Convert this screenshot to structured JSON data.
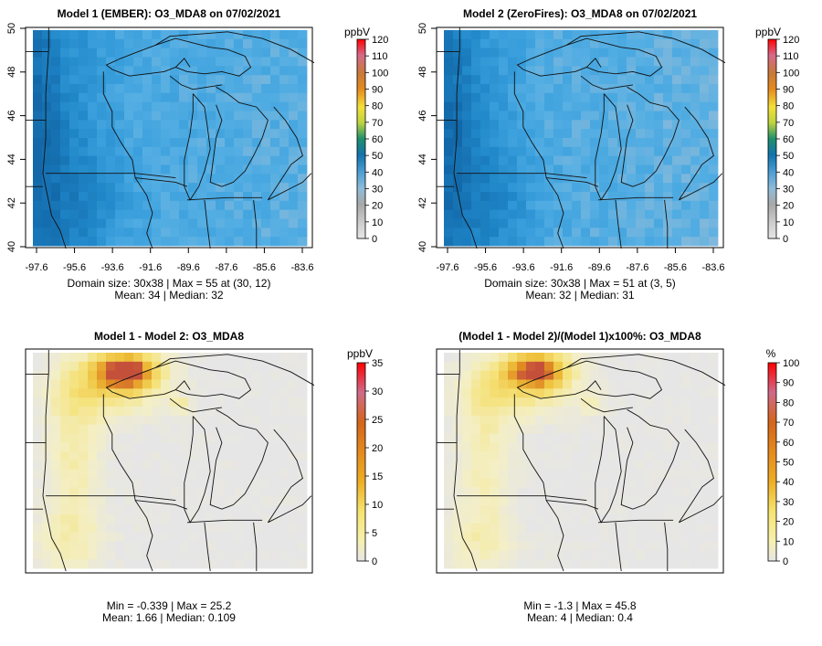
{
  "figure": "O3_MDA8 model comparison maps",
  "colors": {
    "abs_scale": [
      "#e6e6e6",
      "#cccccc",
      "#a8a8a8",
      "#8fbcd8",
      "#62a9dc",
      "#2f8fcf",
      "#1273ad",
      "#1e8f6e",
      "#38a84a",
      "#bcd440",
      "#f3df3a",
      "#f0b22e",
      "#e58a1e",
      "#d4651b",
      "#c7474a",
      "#d32a55",
      "#ff0000"
    ],
    "diff_scale": [
      "#e6e6e6",
      "#f6f0b0",
      "#f6e46e",
      "#f2cf3d",
      "#eeae24",
      "#e58a1e",
      "#d86a1c",
      "#c85a3a",
      "#d02a55",
      "#ff0000"
    ]
  },
  "chart_data": [
    {
      "type": "heatmap",
      "title": "Model 1 (EMBER): O3_MDA8 on 07/02/2021",
      "unit": "ppbV",
      "x_ticks": [
        "-97.6",
        "-95.6",
        "-93.6",
        "-91.6",
        "-89.6",
        "-87.6",
        "-85.6",
        "-83.6"
      ],
      "y_ticks": [
        "40",
        "42",
        "44",
        "46",
        "48",
        "50"
      ],
      "xlim": [
        -98.0,
        -83.4
      ],
      "ylim": [
        40.0,
        50.0
      ],
      "colorbar_ticks": [
        "0",
        "10",
        "20",
        "30",
        "40",
        "50",
        "60",
        "70",
        "80",
        "90",
        "100",
        "110",
        "120"
      ],
      "colorbar_range": [
        0,
        120
      ],
      "stats_line1": "Domain size: 30x38 | Max = 55 at (30, 12)",
      "stats_line2": "Mean: 34 |  Median: 32",
      "grid_cols": 30,
      "grid_rows": 38,
      "max": 55,
      "mean": 34,
      "median": 32
    },
    {
      "type": "heatmap",
      "title": "Model 2 (ZeroFires): O3_MDA8 on 07/02/2021",
      "unit": "ppbV",
      "x_ticks": [
        "-97.6",
        "-95.6",
        "-93.6",
        "-91.6",
        "-89.6",
        "-87.6",
        "-85.6",
        "-83.6"
      ],
      "y_ticks": [
        "40",
        "42",
        "44",
        "46",
        "48",
        "50"
      ],
      "xlim": [
        -98.0,
        -83.4
      ],
      "ylim": [
        40.0,
        50.0
      ],
      "colorbar_ticks": [
        "0",
        "10",
        "20",
        "30",
        "40",
        "50",
        "60",
        "70",
        "80",
        "90",
        "100",
        "110",
        "120"
      ],
      "colorbar_range": [
        0,
        120
      ],
      "stats_line1": "Domain size: 30x38 | Max = 51 at (3, 5)",
      "stats_line2": "Mean: 32 |  Median: 31",
      "grid_cols": 30,
      "grid_rows": 38,
      "max": 51,
      "mean": 32,
      "median": 31
    },
    {
      "type": "heatmap",
      "title": "Model 1 - Model 2: O3_MDA8",
      "unit": "ppbV",
      "colorbar_ticks": [
        "0",
        "5",
        "10",
        "15",
        "20",
        "25",
        "30",
        "35"
      ],
      "colorbar_range": [
        0,
        35
      ],
      "stats_line1": "Min = -0.339 | Max = 25.2",
      "stats_line2": "Mean: 1.66 |  Median: 0.109",
      "min": -0.339,
      "max": 25.2,
      "mean": 1.66,
      "median": 0.109
    },
    {
      "type": "heatmap",
      "title": "(Model 1 - Model 2)/(Model 1)x100%: O3_MDA8",
      "unit": "%",
      "colorbar_ticks": [
        "0",
        "10",
        "20",
        "30",
        "40",
        "50",
        "60",
        "70",
        "80",
        "90",
        "100"
      ],
      "colorbar_range": [
        0,
        100
      ],
      "stats_line1": "Min = -1.3 | Max = 45.8",
      "stats_line2": "Mean: 4 |  Median: 0.4",
      "min": -1.3,
      "max": 45.8,
      "mean": 4,
      "median": 0.4
    }
  ]
}
